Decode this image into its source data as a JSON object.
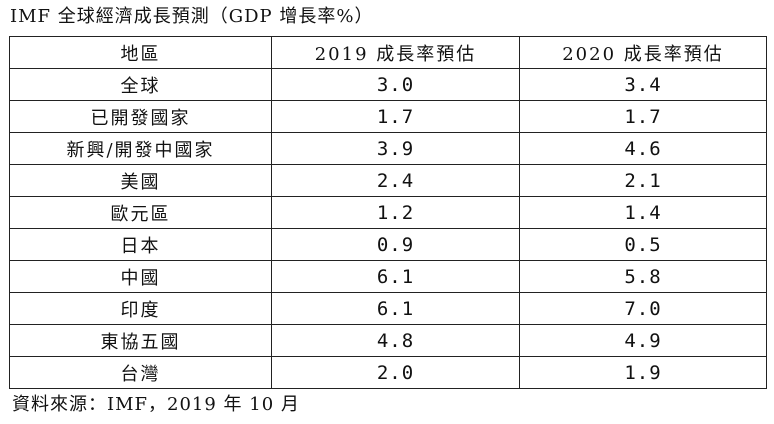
{
  "title": "IMF 全球經濟成長預測（GDP 增長率%）",
  "table": {
    "headers": [
      "地區",
      "2019 成長率預估",
      "2020 成長率預估"
    ],
    "rows": [
      {
        "region": "全球",
        "y2019": "3.0",
        "y2020": "3.4"
      },
      {
        "region": "已開發國家",
        "y2019": "1.7",
        "y2020": "1.7"
      },
      {
        "region": "新興/開發中國家",
        "y2019": "3.9",
        "y2020": "4.6"
      },
      {
        "region": "美國",
        "y2019": "2.4",
        "y2020": "2.1"
      },
      {
        "region": "歐元區",
        "y2019": "1.2",
        "y2020": "1.4"
      },
      {
        "region": "日本",
        "y2019": "0.9",
        "y2020": "0.5"
      },
      {
        "region": "中國",
        "y2019": "6.1",
        "y2020": "5.8"
      },
      {
        "region": "印度",
        "y2019": "6.1",
        "y2020": "7.0"
      },
      {
        "region": "東協五國",
        "y2019": "4.8",
        "y2020": "4.9"
      },
      {
        "region": "台灣",
        "y2019": "2.0",
        "y2020": "1.9"
      }
    ]
  },
  "source": "資料來源：IMF，2019 年 10 月"
}
